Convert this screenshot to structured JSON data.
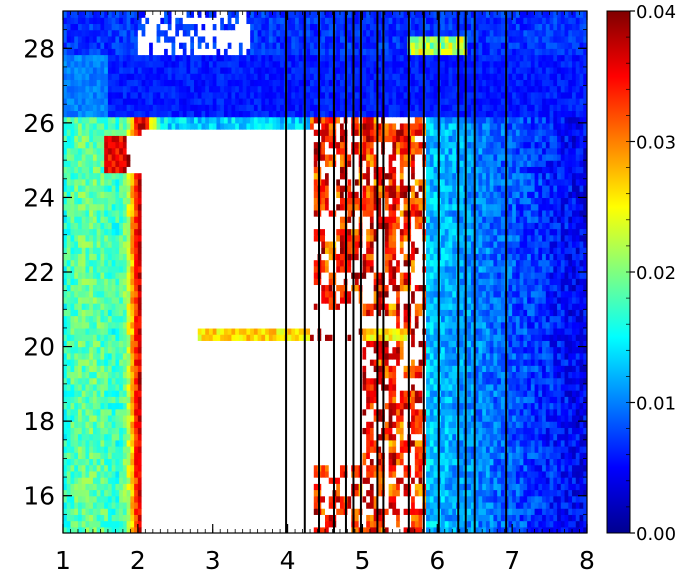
{
  "chart_data": {
    "type": "heatmap",
    "title": "",
    "xlabel": "",
    "ylabel": "",
    "xlim": [
      1,
      8
    ],
    "ylim": [
      15,
      29
    ],
    "x_ticks": [
      1,
      2,
      3,
      4,
      5,
      6,
      7,
      8
    ],
    "x_tick_labels": [
      "1",
      "2",
      "3",
      "4",
      "5",
      "6",
      "7",
      "8"
    ],
    "y_ticks": [
      16,
      18,
      20,
      22,
      24,
      26,
      28
    ],
    "y_tick_labels": [
      "16",
      "18",
      "20",
      "22",
      "24",
      "26",
      "28"
    ],
    "colorbar": {
      "min": 0.0,
      "max": 0.04,
      "ticks": [
        0.0,
        0.01,
        0.02,
        0.03,
        0.04
      ],
      "tick_labels": [
        "0.00",
        "0.01",
        "0.02",
        "0.03",
        "0.04"
      ],
      "colormap": "jet",
      "above_max_color": "#ffffff"
    },
    "vertical_lines_x": [
      3.98,
      4.23,
      4.42,
      4.62,
      4.78,
      4.88,
      4.98,
      5.2,
      5.28,
      5.62,
      5.82,
      6.02,
      6.28,
      6.38,
      6.5,
      6.92
    ],
    "line_color": "#000000"
  }
}
